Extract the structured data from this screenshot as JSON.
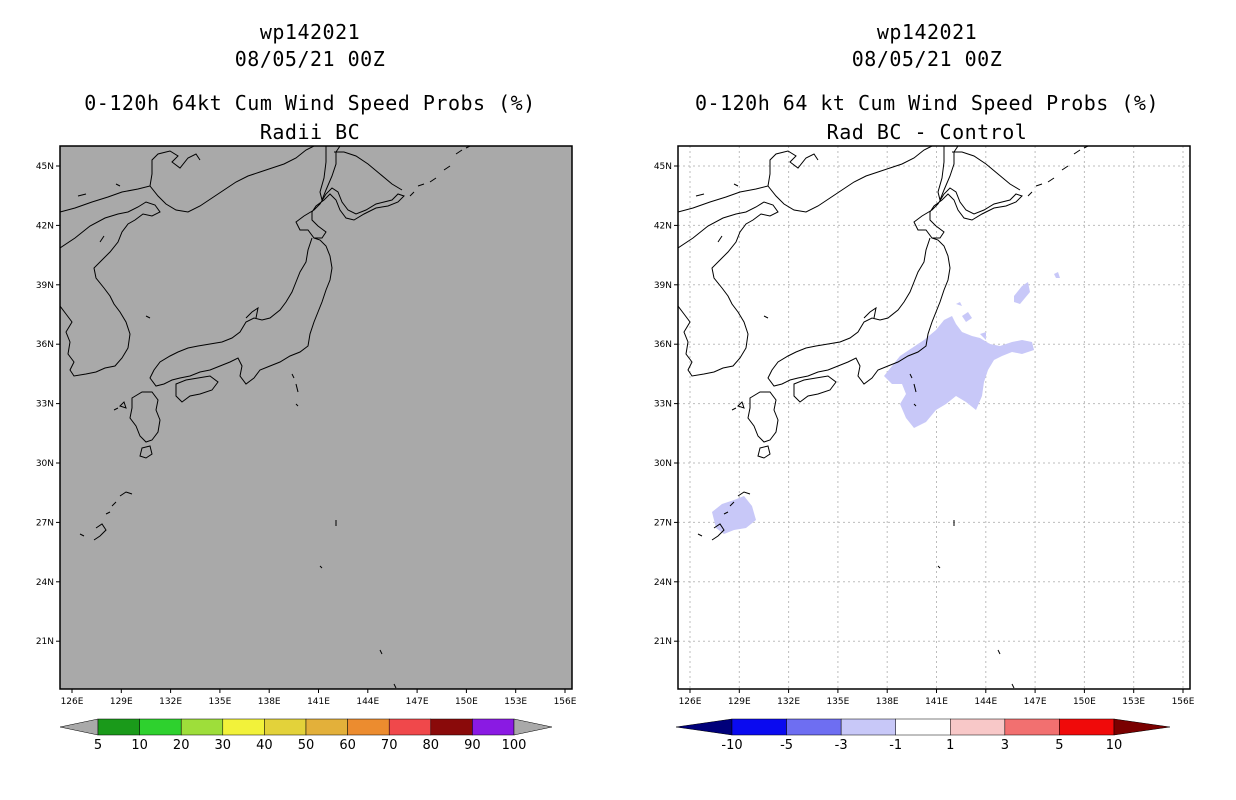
{
  "left_panel": {
    "title_line1": "wp142021",
    "title_line2": "08/05/21 00Z",
    "title_line3": "0-120h 64kt Cum Wind Speed Probs (%)",
    "title_line4": "Radii BC",
    "fill_color": "#a9a9a9",
    "colorbar": {
      "colors": [
        "#a9a9a9",
        "#1a9a1a",
        "#2ed12e",
        "#9ede3a",
        "#f2f23a",
        "#e3d23a",
        "#e3b03a",
        "#ec8c2f",
        "#f0484b",
        "#8a0a0a",
        "#8a1ae3",
        "#a9a9a9"
      ],
      "labels": [
        "5",
        "10",
        "20",
        "30",
        "40",
        "50",
        "60",
        "70",
        "80",
        "90",
        "100"
      ]
    }
  },
  "right_panel": {
    "title_line1": "wp142021",
    "title_line2": "08/05/21 00Z",
    "title_line3": "0-120h 64 kt Cum Wind Speed Probs (%)",
    "title_line4": "Rad BC - Control",
    "fill_color": "#c8c8f8",
    "colorbar": {
      "colors": [
        "#00007a",
        "#0a0af0",
        "#6e6ef2",
        "#c8c8f8",
        "#ffffff",
        "#f8c8c8",
        "#f27070",
        "#f00a0a",
        "#7a0000"
      ],
      "labels": [
        "-10",
        "-5",
        "-3",
        "-1",
        "1",
        "3",
        "5",
        "10"
      ]
    }
  },
  "axes": {
    "lon_labels": [
      "126E",
      "129E",
      "132E",
      "135E",
      "138E",
      "141E",
      "144E",
      "147E",
      "150E",
      "153E",
      "156E"
    ],
    "lat_labels": [
      "45N",
      "42N",
      "39N",
      "36N",
      "33N",
      "30N",
      "27N",
      "24N",
      "21N"
    ]
  }
}
